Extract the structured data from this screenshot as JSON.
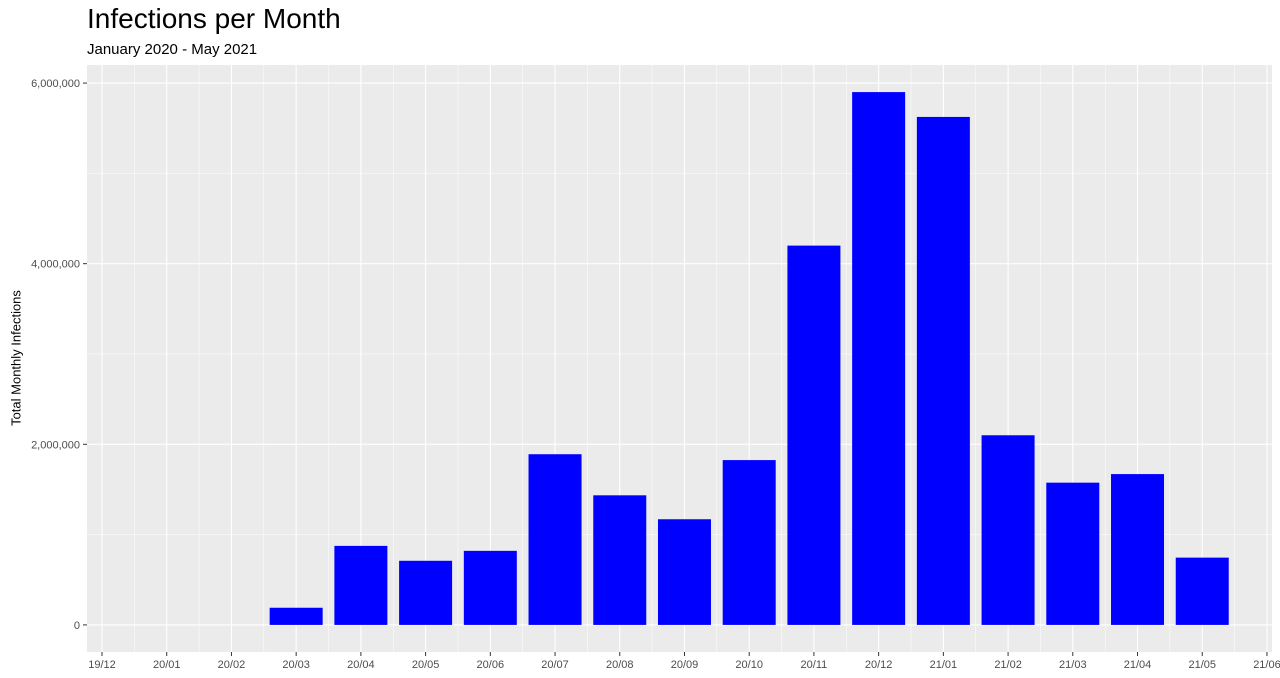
{
  "chart_data": {
    "type": "bar",
    "title": "Infections per Month",
    "subtitle": "January 2020 - May 2021",
    "xlabel": "",
    "ylabel": "Total Monthly Infections",
    "x_tick_labels": [
      "19/12",
      "20/01",
      "20/02",
      "20/03",
      "20/04",
      "20/05",
      "20/06",
      "20/07",
      "20/08",
      "20/09",
      "20/10",
      "20/11",
      "20/12",
      "21/01",
      "21/02",
      "21/03",
      "21/04",
      "21/05",
      "21/06"
    ],
    "y_tick_labels": [
      "0",
      "2,000,000",
      "4,000,000",
      "6,000,000"
    ],
    "y_ticks": [
      0,
      2000000,
      4000000,
      6000000
    ],
    "ylim": [
      -300000,
      6200000
    ],
    "bars": [
      {
        "date": "2020-03",
        "value": 190000
      },
      {
        "date": "2020-04",
        "value": 875000
      },
      {
        "date": "2020-05",
        "value": 710000
      },
      {
        "date": "2020-06",
        "value": 820000
      },
      {
        "date": "2020-07",
        "value": 1890000
      },
      {
        "date": "2020-08",
        "value": 1435000
      },
      {
        "date": "2020-09",
        "value": 1170000
      },
      {
        "date": "2020-10",
        "value": 1825000
      },
      {
        "date": "2020-11",
        "value": 4200000
      },
      {
        "date": "2020-12",
        "value": 5900000
      },
      {
        "date": "2021-01",
        "value": 5625000
      },
      {
        "date": "2021-02",
        "value": 2100000
      },
      {
        "date": "2021-03",
        "value": 1575000
      },
      {
        "date": "2021-04",
        "value": 1670000
      },
      {
        "date": "2021-05",
        "value": 745000
      }
    ],
    "bar_color": "#0000ff",
    "panel_background": "#ebebeb",
    "grid": true,
    "legend": "none"
  }
}
